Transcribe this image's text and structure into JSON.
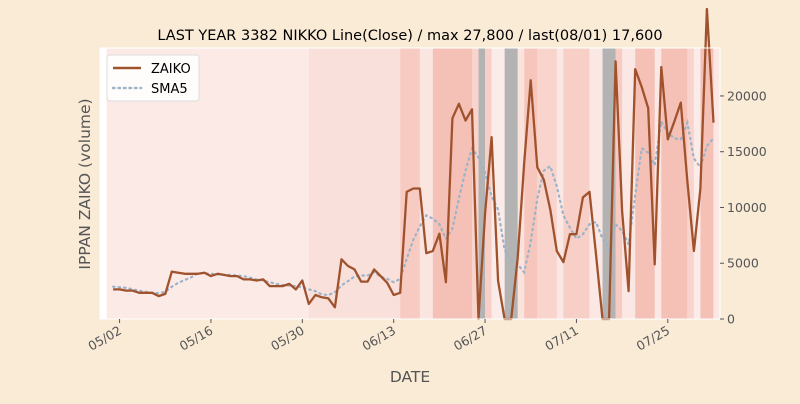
{
  "chart_data": {
    "type": "line",
    "title": "LAST YEAR 3382 NIKKO Line(Close) / max 27,800 / last(08/01) 17,600",
    "xlabel": "DATE",
    "ylabel": "IPPAN ZAIKO (volume)",
    "x_tick_labels": [
      {
        "date": "2023-05-02",
        "label": "05/02"
      },
      {
        "date": "2023-05-16",
        "label": "05/16"
      },
      {
        "date": "2023-05-30",
        "label": "05/30"
      },
      {
        "date": "2023-06-13",
        "label": "06/13"
      },
      {
        "date": "2023-06-27",
        "label": "06/27"
      },
      {
        "date": "2023-07-11",
        "label": "07/11"
      },
      {
        "date": "2023-07-25",
        "label": "07/25"
      }
    ],
    "y_ticks": [
      0,
      5000,
      10000,
      15000,
      20000
    ],
    "ylim": [
      0,
      24300
    ],
    "xlim": [
      "2023-04-29",
      "2023-08-02"
    ],
    "grid": false,
    "legend_position": "upper-left",
    "series": [
      {
        "name": "ZAIKO",
        "color": "#a0522d",
        "style": "solid",
        "points": [
          [
            "2023-05-01",
            2650
          ],
          [
            "2023-05-02",
            2650
          ],
          [
            "2023-05-03",
            2550
          ],
          [
            "2023-05-04",
            2550
          ],
          [
            "2023-05-05",
            2350
          ],
          [
            "2023-05-06",
            2350
          ],
          [
            "2023-05-07",
            2350
          ],
          [
            "2023-05-08",
            2050
          ],
          [
            "2023-05-09",
            2250
          ],
          [
            "2023-05-10",
            4250
          ],
          [
            "2023-05-11",
            4150
          ],
          [
            "2023-05-12",
            4050
          ],
          [
            "2023-05-13",
            4050
          ],
          [
            "2023-05-14",
            4050
          ],
          [
            "2023-05-15",
            4150
          ],
          [
            "2023-05-16",
            3850
          ],
          [
            "2023-05-17",
            4050
          ],
          [
            "2023-05-18",
            3950
          ],
          [
            "2023-05-19",
            3850
          ],
          [
            "2023-05-20",
            3850
          ],
          [
            "2023-05-21",
            3550
          ],
          [
            "2023-05-22",
            3550
          ],
          [
            "2023-05-23",
            3450
          ],
          [
            "2023-05-24",
            3550
          ],
          [
            "2023-05-25",
            2950
          ],
          [
            "2023-05-26",
            2950
          ],
          [
            "2023-05-27",
            2950
          ],
          [
            "2023-05-28",
            3150
          ],
          [
            "2023-05-29",
            2650
          ],
          [
            "2023-05-30",
            3450
          ],
          [
            "2023-05-31",
            1350
          ],
          [
            "2023-06-01",
            2150
          ],
          [
            "2023-06-02",
            1950
          ],
          [
            "2023-06-03",
            1850
          ],
          [
            "2023-06-04",
            1050
          ],
          [
            "2023-06-05",
            5350
          ],
          [
            "2023-06-06",
            4750
          ],
          [
            "2023-06-07",
            4450
          ],
          [
            "2023-06-08",
            3350
          ],
          [
            "2023-06-09",
            3350
          ],
          [
            "2023-06-10",
            4450
          ],
          [
            "2023-06-11",
            3850
          ],
          [
            "2023-06-12",
            3250
          ],
          [
            "2023-06-13",
            2150
          ],
          [
            "2023-06-14",
            2350
          ],
          [
            "2023-06-15",
            11400
          ],
          [
            "2023-06-16",
            11700
          ],
          [
            "2023-06-17",
            11700
          ],
          [
            "2023-06-18",
            5900
          ],
          [
            "2023-06-19",
            6100
          ],
          [
            "2023-06-20",
            7650
          ],
          [
            "2023-06-21",
            3300
          ],
          [
            "2023-06-22",
            18000
          ],
          [
            "2023-06-23",
            19300
          ],
          [
            "2023-06-24",
            17800
          ],
          [
            "2023-06-25",
            18800
          ],
          [
            "2023-06-26",
            0
          ],
          [
            "2023-06-27",
            9500
          ],
          [
            "2023-06-28",
            16300
          ],
          [
            "2023-06-29",
            3400
          ],
          [
            "2023-06-30",
            0
          ],
          [
            "2023-07-01",
            0
          ],
          [
            "2023-07-02",
            5500
          ],
          [
            "2023-07-03",
            14000
          ],
          [
            "2023-07-04",
            21400
          ],
          [
            "2023-07-05",
            13600
          ],
          [
            "2023-07-06",
            12500
          ],
          [
            "2023-07-07",
            9800
          ],
          [
            "2023-07-08",
            6100
          ],
          [
            "2023-07-09",
            5100
          ],
          [
            "2023-07-10",
            7600
          ],
          [
            "2023-07-11",
            7600
          ],
          [
            "2023-07-12",
            10900
          ],
          [
            "2023-07-13",
            11400
          ],
          [
            "2023-07-14",
            5800
          ],
          [
            "2023-07-15",
            0
          ],
          [
            "2023-07-16",
            0
          ],
          [
            "2023-07-17",
            23100
          ],
          [
            "2023-07-18",
            9700
          ],
          [
            "2023-07-19",
            2500
          ],
          [
            "2023-07-20",
            22400
          ],
          [
            "2023-07-21",
            20800
          ],
          [
            "2023-07-22",
            18900
          ],
          [
            "2023-07-23",
            4900
          ],
          [
            "2023-07-24",
            22600
          ],
          [
            "2023-07-25",
            16100
          ],
          [
            "2023-07-26",
            17700
          ],
          [
            "2023-07-27",
            19400
          ],
          [
            "2023-07-28",
            12300
          ],
          [
            "2023-07-29",
            6100
          ],
          [
            "2023-07-30",
            11700
          ],
          [
            "2023-07-31",
            27800
          ],
          [
            "2023-08-01",
            17600
          ]
        ]
      },
      {
        "name": "SMA5",
        "color": "#9db3c8",
        "style": "dotted",
        "points": [
          [
            "2023-05-01",
            2900
          ],
          [
            "2023-05-02",
            2850
          ],
          [
            "2023-05-03",
            2800
          ],
          [
            "2023-05-04",
            2650
          ],
          [
            "2023-05-05",
            2550
          ],
          [
            "2023-05-06",
            2450
          ],
          [
            "2023-05-07",
            2350
          ],
          [
            "2023-05-08",
            2300
          ],
          [
            "2023-05-09",
            2450
          ],
          [
            "2023-05-10",
            2900
          ],
          [
            "2023-05-11",
            3250
          ],
          [
            "2023-05-12",
            3500
          ],
          [
            "2023-05-13",
            3750
          ],
          [
            "2023-05-14",
            4100
          ],
          [
            "2023-05-15",
            4100
          ],
          [
            "2023-05-16",
            4050
          ],
          [
            "2023-05-17",
            4000
          ],
          [
            "2023-05-18",
            3950
          ],
          [
            "2023-05-19",
            3950
          ],
          [
            "2023-05-20",
            3900
          ],
          [
            "2023-05-21",
            3850
          ],
          [
            "2023-05-22",
            3700
          ],
          [
            "2023-05-23",
            3550
          ],
          [
            "2023-05-24",
            3450
          ],
          [
            "2023-05-25",
            3300
          ],
          [
            "2023-05-26",
            3150
          ],
          [
            "2023-05-27",
            3050
          ],
          [
            "2023-05-28",
            3000
          ],
          [
            "2023-05-29",
            2950
          ],
          [
            "2023-05-30",
            2850
          ],
          [
            "2023-05-31",
            2650
          ],
          [
            "2023-06-01",
            2500
          ],
          [
            "2023-06-02",
            2200
          ],
          [
            "2023-06-03",
            2150
          ],
          [
            "2023-06-04",
            2400
          ],
          [
            "2023-06-05",
            3000
          ],
          [
            "2023-06-06",
            3400
          ],
          [
            "2023-06-07",
            3800
          ],
          [
            "2023-06-08",
            3900
          ],
          [
            "2023-06-09",
            3900
          ],
          [
            "2023-06-10",
            4200
          ],
          [
            "2023-06-11",
            3800
          ],
          [
            "2023-06-12",
            3600
          ],
          [
            "2023-06-13",
            3300
          ],
          [
            "2023-06-14",
            3600
          ],
          [
            "2023-06-15",
            5400
          ],
          [
            "2023-06-16",
            7100
          ],
          [
            "2023-06-17",
            8300
          ],
          [
            "2023-06-18",
            9300
          ],
          [
            "2023-06-19",
            9000
          ],
          [
            "2023-06-20",
            8500
          ],
          [
            "2023-06-21",
            7200
          ],
          [
            "2023-06-22",
            8100
          ],
          [
            "2023-06-23",
            10800
          ],
          [
            "2023-06-24",
            13300
          ],
          [
            "2023-06-25",
            15300
          ],
          [
            "2023-06-26",
            14500
          ],
          [
            "2023-06-27",
            13100
          ],
          [
            "2023-06-28",
            11000
          ],
          [
            "2023-06-29",
            9800
          ],
          [
            "2023-06-30",
            6200
          ],
          [
            "2023-07-01",
            5300
          ],
          [
            "2023-07-02",
            4900
          ],
          [
            "2023-07-03",
            4200
          ],
          [
            "2023-07-04",
            6900
          ],
          [
            "2023-07-05",
            10800
          ],
          [
            "2023-07-06",
            13300
          ],
          [
            "2023-07-07",
            13700
          ],
          [
            "2023-07-08",
            11900
          ],
          [
            "2023-07-09",
            9300
          ],
          [
            "2023-07-10",
            8200
          ],
          [
            "2023-07-11",
            7200
          ],
          [
            "2023-07-12",
            7600
          ],
          [
            "2023-07-13",
            8500
          ],
          [
            "2023-07-14",
            8700
          ],
          [
            "2023-07-15",
            7200
          ],
          [
            "2023-07-16",
            6200
          ],
          [
            "2023-07-17",
            8500
          ],
          [
            "2023-07-18",
            7900
          ],
          [
            "2023-07-19",
            6700
          ],
          [
            "2023-07-20",
            11100
          ],
          [
            "2023-07-21",
            15300
          ],
          [
            "2023-07-22",
            14900
          ],
          [
            "2023-07-23",
            13800
          ],
          [
            "2023-07-24",
            17700
          ],
          [
            "2023-07-25",
            16700
          ],
          [
            "2023-07-26",
            16200
          ],
          [
            "2023-07-27",
            16100
          ],
          [
            "2023-07-28",
            17600
          ],
          [
            "2023-07-29",
            14400
          ],
          [
            "2023-07-30",
            13600
          ],
          [
            "2023-07-31",
            15500
          ],
          [
            "2023-08-01",
            16200
          ]
        ]
      }
    ],
    "background_bands": [
      {
        "from": "2023-04-30",
        "to": "2023-05-31",
        "color": "#f0a090",
        "opacity": 0.22
      },
      {
        "from": "2023-05-31",
        "to": "2023-06-14",
        "color": "#f0a090",
        "opacity": 0.32
      },
      {
        "from": "2023-06-14",
        "to": "2023-06-17",
        "color": "#f0a090",
        "opacity": 0.55
      },
      {
        "from": "2023-06-17",
        "to": "2023-06-19",
        "color": "#f0a090",
        "opacity": 0.28
      },
      {
        "from": "2023-06-19",
        "to": "2023-06-25",
        "color": "#f0a090",
        "opacity": 0.65
      },
      {
        "from": "2023-06-25",
        "to": "2023-06-26",
        "color": "#f0a090",
        "opacity": 0.45
      },
      {
        "from": "2023-06-26",
        "to": "2023-06-27",
        "color": "#a0a0a0",
        "opacity": 0.8
      },
      {
        "from": "2023-06-27",
        "to": "2023-06-28",
        "color": "#f0a090",
        "opacity": 0.5
      },
      {
        "from": "2023-06-28",
        "to": "2023-06-30",
        "color": "#f0a090",
        "opacity": 0.2
      },
      {
        "from": "2023-06-30",
        "to": "2023-07-02",
        "color": "#a0a0a0",
        "opacity": 0.8
      },
      {
        "from": "2023-07-02",
        "to": "2023-07-03",
        "color": "#f0a090",
        "opacity": 0.3
      },
      {
        "from": "2023-07-03",
        "to": "2023-07-05",
        "color": "#f0a090",
        "opacity": 0.6
      },
      {
        "from": "2023-07-05",
        "to": "2023-07-08",
        "color": "#f0a090",
        "opacity": 0.45
      },
      {
        "from": "2023-07-08",
        "to": "2023-07-09",
        "color": "#f0a090",
        "opacity": 0.25
      },
      {
        "from": "2023-07-09",
        "to": "2023-07-13",
        "color": "#f0a090",
        "opacity": 0.5
      },
      {
        "from": "2023-07-13",
        "to": "2023-07-15",
        "color": "#f0a090",
        "opacity": 0.25
      },
      {
        "from": "2023-07-15",
        "to": "2023-07-17",
        "color": "#a0a0a0",
        "opacity": 0.8
      },
      {
        "from": "2023-07-17",
        "to": "2023-07-18",
        "color": "#f0a090",
        "opacity": 0.55
      },
      {
        "from": "2023-07-18",
        "to": "2023-07-20",
        "color": "#f0a090",
        "opacity": 0.25
      },
      {
        "from": "2023-07-20",
        "to": "2023-07-23",
        "color": "#f0a090",
        "opacity": 0.65
      },
      {
        "from": "2023-07-23",
        "to": "2023-07-24",
        "color": "#f0a090",
        "opacity": 0.25
      },
      {
        "from": "2023-07-24",
        "to": "2023-07-28",
        "color": "#f0a090",
        "opacity": 0.65
      },
      {
        "from": "2023-07-28",
        "to": "2023-07-29",
        "color": "#f0a090",
        "opacity": 0.45
      },
      {
        "from": "2023-07-29",
        "to": "2023-07-30",
        "color": "#f0a090",
        "opacity": 0.2
      },
      {
        "from": "2023-07-30",
        "to": "2023-08-01",
        "color": "#f0a090",
        "opacity": 0.65
      },
      {
        "from": "2023-08-01",
        "to": "2023-08-02",
        "color": "#f0a090",
        "opacity": 0.25
      }
    ]
  }
}
